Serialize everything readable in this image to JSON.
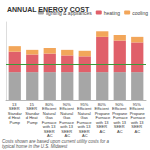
{
  "chart_data": {
    "type": "bar",
    "title": "ANNUAL ENERGY COST",
    "subtitle": "Costs shown are based upon current utility costs for a typical home in the U.S. Midwest",
    "categories": [
      "13 SEER Standard Heat Pump",
      "15 SEER Standard Heat Pump",
      "80% Efficient Natural Gas Furnace with 13 SEER AC",
      "90% Efficient Natural Gas Furnace with 13 SEER AC",
      "95% Efficient Natural Gas Furnace with 13 SEER AC",
      "80% Efficient Propane Furnace with 13 SEER AC",
      "90% Efficient Propane Furnace with 13 SEER AC",
      "95% Efficient Propane Furnace with 13 SEER AC"
    ],
    "series": [
      {
        "name": "lighting & appliances",
        "color": "#a6a6a6",
        "values": [
          1500,
          1500,
          1500,
          1500,
          1500,
          1500,
          1500,
          1500
        ]
      },
      {
        "name": "heating",
        "color": "#e0606a",
        "values": [
          1100,
          950,
          1000,
          900,
          850,
          1900,
          1700,
          1600
        ]
      },
      {
        "name": "cooling",
        "color": "#f2a65a",
        "values": [
          300,
          250,
          300,
          300,
          300,
          300,
          300,
          300
        ]
      }
    ],
    "reference_line": {
      "value": 1900,
      "color": "#3a9a3a"
    },
    "ylim": [
      0,
      4200
    ],
    "stacked": true,
    "grid": false,
    "legend": "top-right",
    "tick_labels": "x"
  }
}
